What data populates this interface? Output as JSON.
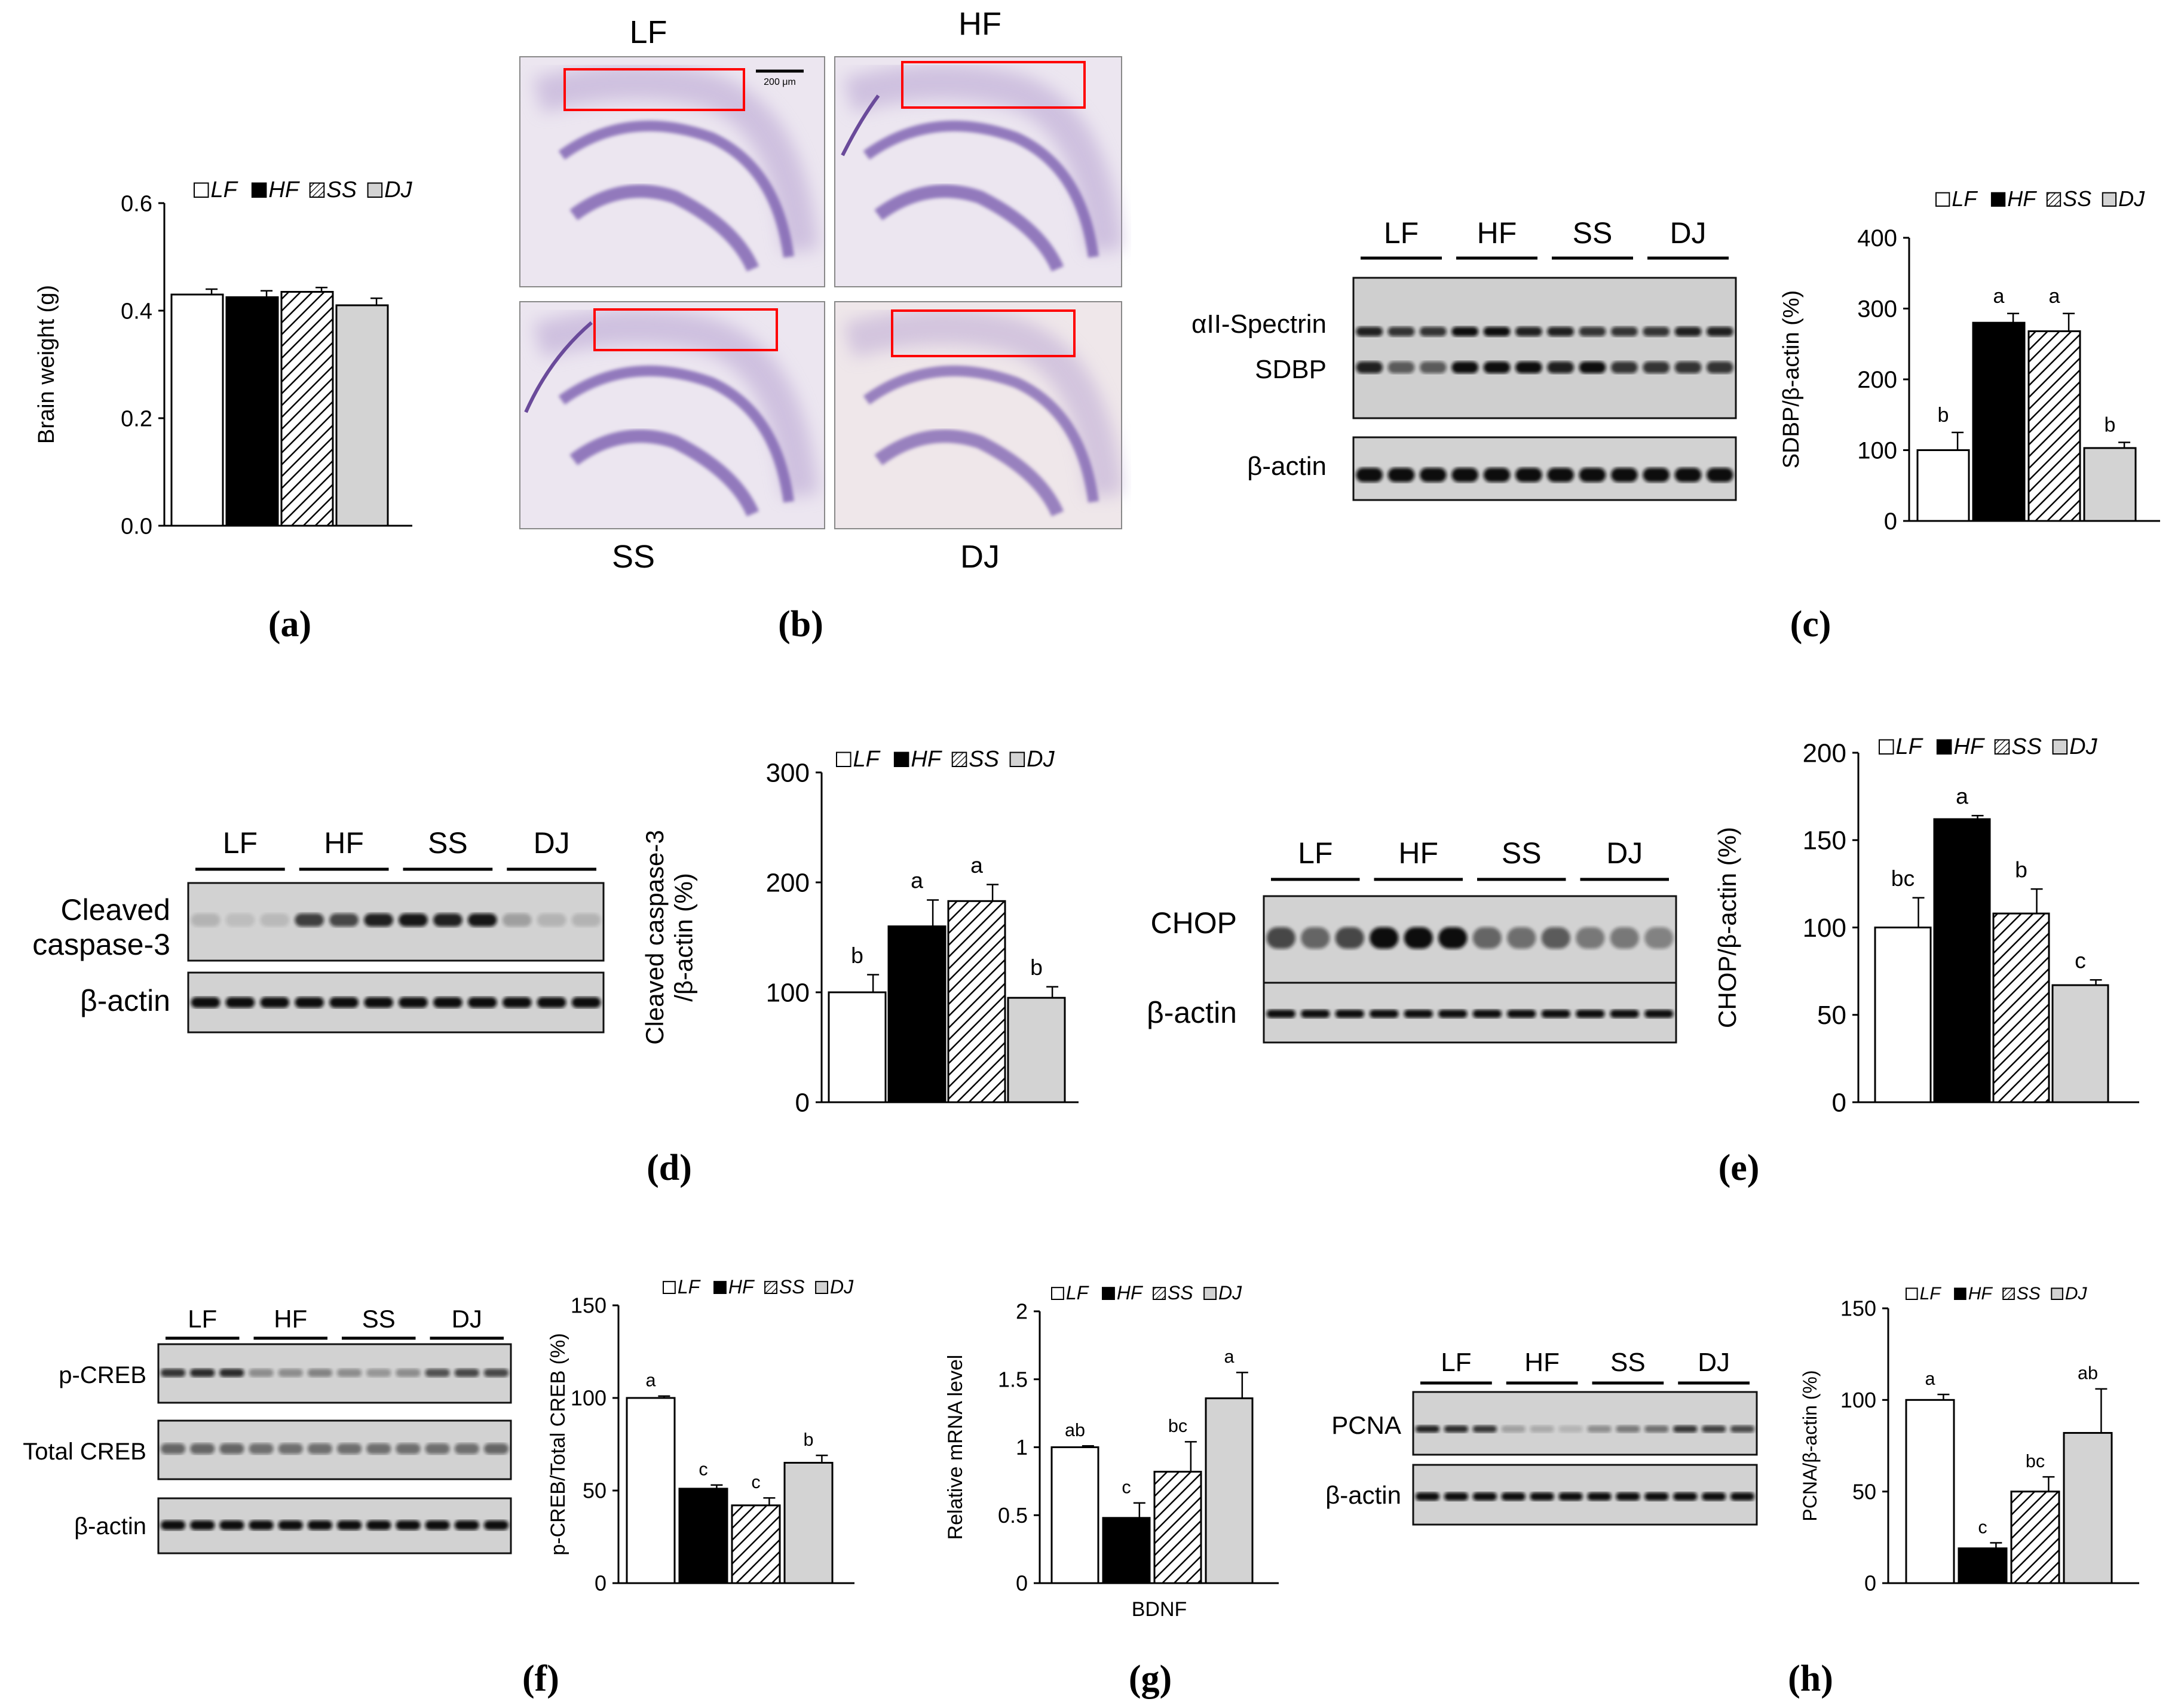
{
  "groups": [
    "LF",
    "HF",
    "SS",
    "DJ"
  ],
  "colors": {
    "LF": "#ffffff",
    "HF": "#000000",
    "SS": "hatch",
    "DJ": "#d3d3d3",
    "box": "#ff0000"
  },
  "panel_labels": [
    "(a)",
    "(b)",
    "(c)",
    "(d)",
    "(e)",
    "(f)",
    "(g)",
    "(h)"
  ],
  "histology": {
    "labels": [
      "LF",
      "HF",
      "SS",
      "DJ"
    ],
    "scale_bar": "200 μm"
  },
  "blots": {
    "c": {
      "rows": [
        "αII-Spectrin",
        "SDBP",
        "β-actin"
      ]
    },
    "d": {
      "rows": [
        "Cleaved",
        "caspase-3",
        "β-actin"
      ]
    },
    "e": {
      "rows": [
        "CHOP",
        "β-actin"
      ]
    },
    "f": {
      "rows": [
        "p-CREB",
        "Total CREB",
        "β-actin"
      ]
    },
    "h": {
      "rows": [
        "PCNA",
        "β-actin"
      ]
    }
  },
  "chart_data": [
    {
      "id": "a",
      "type": "bar",
      "categories": [
        "LF",
        "HF",
        "SS",
        "DJ"
      ],
      "values": [
        0.43,
        0.425,
        0.435,
        0.41
      ],
      "errors": [
        0.01,
        0.012,
        0.008,
        0.013
      ],
      "ylabel": "Brain weight (g)",
      "ylim": [
        0,
        0.6
      ],
      "yticks": [
        "0.0",
        "0.2",
        "0.4",
        "0.6"
      ],
      "letters": []
    },
    {
      "id": "c",
      "type": "bar",
      "categories": [
        "LF",
        "HF",
        "SS",
        "DJ"
      ],
      "values": [
        100,
        280,
        268,
        103
      ],
      "errors": [
        25,
        13,
        25,
        8
      ],
      "ylabel": "SDBP/β-actin (%)",
      "ylim": [
        0,
        400
      ],
      "yticks": [
        "0",
        "100",
        "200",
        "300",
        "400"
      ],
      "letters": [
        "b",
        "a",
        "a",
        "b"
      ]
    },
    {
      "id": "d",
      "type": "bar",
      "categories": [
        "LF",
        "HF",
        "SS",
        "DJ"
      ],
      "values": [
        100,
        160,
        183,
        95
      ],
      "errors": [
        16,
        24,
        15,
        10
      ],
      "ylabel": "Cleaved caspase-3 /β-actin (%)",
      "ylabel_lines": [
        "Cleaved caspase-3",
        "/β-actin (%)"
      ],
      "ylim": [
        0,
        300
      ],
      "yticks": [
        "0",
        "100",
        "200",
        "300"
      ],
      "letters": [
        "b",
        "a",
        "a",
        "b"
      ]
    },
    {
      "id": "e",
      "type": "bar",
      "categories": [
        "LF",
        "HF",
        "SS",
        "DJ"
      ],
      "values": [
        100,
        162,
        108,
        67
      ],
      "errors": [
        17,
        2,
        14,
        3
      ],
      "ylabel": "CHOP/β-actin (%)",
      "ylim": [
        0,
        200
      ],
      "yticks": [
        "0",
        "50",
        "100",
        "150",
        "200"
      ],
      "letters": [
        "bc",
        "a",
        "b",
        "c"
      ]
    },
    {
      "id": "f",
      "type": "bar",
      "categories": [
        "LF",
        "HF",
        "SS",
        "DJ"
      ],
      "values": [
        100,
        51,
        42,
        65
      ],
      "errors": [
        1,
        2,
        4,
        4
      ],
      "ylabel": "p-CREB/Total CREB (%)",
      "ylim": [
        0,
        150
      ],
      "yticks": [
        "0",
        "50",
        "100",
        "150"
      ],
      "letters": [
        "a",
        "c",
        "c",
        "b"
      ]
    },
    {
      "id": "g",
      "type": "bar",
      "categories": [
        "LF",
        "HF",
        "SS",
        "DJ"
      ],
      "values": [
        1.0,
        0.48,
        0.82,
        1.36
      ],
      "errors": [
        0.01,
        0.11,
        0.22,
        0.19
      ],
      "ylabel": "Relative mRNA level",
      "xlabel": "BDNF",
      "ylim": [
        0,
        2
      ],
      "yticks": [
        "0",
        "0.5",
        "1",
        "1.5",
        "2"
      ],
      "letters": [
        "ab",
        "c",
        "bc",
        "a"
      ]
    },
    {
      "id": "h",
      "type": "bar",
      "categories": [
        "LF",
        "HF",
        "SS",
        "DJ"
      ],
      "values": [
        100,
        19,
        50,
        82
      ],
      "errors": [
        3,
        3,
        8,
        24
      ],
      "ylabel": "PCNA/β-actin (%)",
      "ylim": [
        0,
        150
      ],
      "yticks": [
        "0",
        "50",
        "100",
        "150"
      ],
      "letters": [
        "a",
        "c",
        "bc",
        "ab"
      ]
    }
  ]
}
